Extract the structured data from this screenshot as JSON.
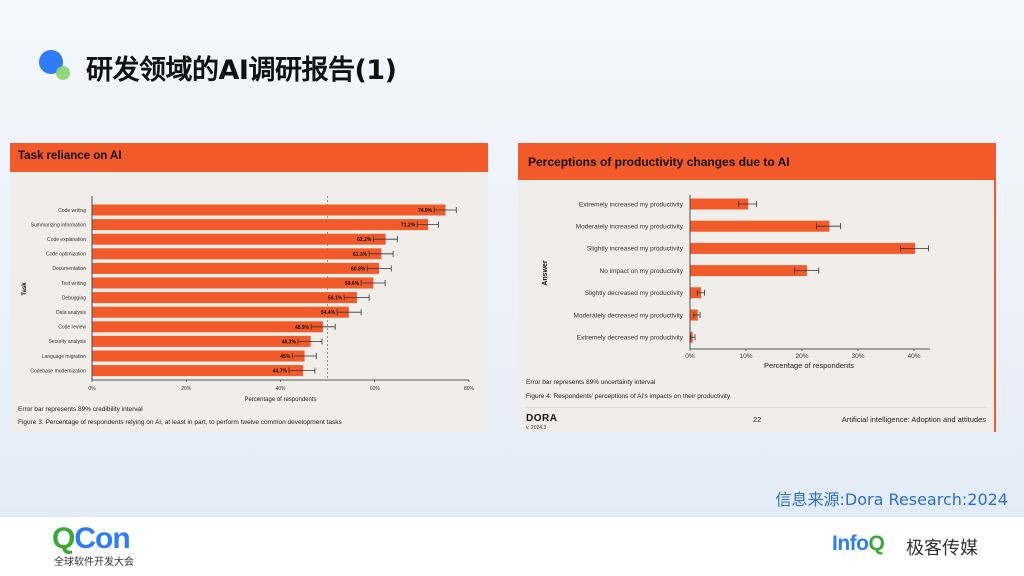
{
  "slide": {
    "title": "研发领域的AI调研报告(1)",
    "source": "信息来源:Dora Research:2024",
    "footer_left_logo": "QCon",
    "footer_left_sub": "全球软件开发大会",
    "footer_right_logo": "InfoQ",
    "footer_right_sub": "极客传媒",
    "accent": "#f25a29"
  },
  "left_panel": {
    "header": "Task reliance on AI",
    "error_note": "Error bar represents 89% credibility interval",
    "caption": "Figure 3: Percentage of respondents relying on AI, at least in part, to perform twelve common development tasks"
  },
  "right_panel": {
    "header": "Perceptions of productivity changes due to AI",
    "error_note": "Error bar represents 89% uncertainty interval",
    "caption": "Figure 4: Respondents' perceptions of AI's impacts on their productivity",
    "brand": "DORA",
    "version": "v. 2024.3",
    "page": "22",
    "section": "Artificial intelligence: Adoption and attitudes"
  },
  "chart_data": [
    {
      "type": "bar",
      "orientation": "horizontal",
      "title": "Task reliance on AI",
      "xlabel": "Percentage of respondents",
      "ylabel": "Task",
      "xlim": [
        0,
        80
      ],
      "xticks": [
        "0%",
        "20%",
        "40%",
        "60%",
        "80%"
      ],
      "reference_line": 50,
      "categories": [
        "Code writing",
        "Summarizing information",
        "Code explanation",
        "Code optimization",
        "Documentation",
        "Test writing",
        "Debugging",
        "Data analysis",
        "Code review",
        "Security analysis",
        "Language migration",
        "Codebase modernization"
      ],
      "values": [
        74.9,
        71.2,
        62.2,
        61.3,
        60.8,
        59.6,
        56.1,
        54.4,
        48.9,
        46.3,
        45.0,
        44.7
      ],
      "labels": [
        "74.9%",
        "71.2%",
        "62.2%",
        "61.3%",
        "60.8%",
        "59.6%",
        "56.1%",
        "54.4%",
        "48.9%",
        "46.3%",
        "45%",
        "44.7%"
      ],
      "error_low": [
        72.6,
        69.0,
        59.7,
        58.8,
        58.4,
        57.1,
        53.5,
        52.0,
        46.5,
        43.7,
        42.5,
        41.8
      ],
      "error_high": [
        77.3,
        73.5,
        64.8,
        63.9,
        63.5,
        62.2,
        58.8,
        57.1,
        51.6,
        48.8,
        47.6,
        47.3
      ]
    },
    {
      "type": "bar",
      "orientation": "horizontal",
      "title": "Perceptions of productivity changes due to AI",
      "xlabel": "Percentage of respondents",
      "ylabel": "Answer",
      "xlim": [
        0,
        42.5
      ],
      "xticks": [
        "0%",
        "10%",
        "20%",
        "30%",
        "40%"
      ],
      "categories": [
        "Extremely increased my productivity",
        "Moderately increased my productivity",
        "Slightly increased my productivity",
        "No impact on my productivity",
        "Slightly decreased my productivity",
        "Moderately decreased my productivity",
        "Extremely decreased my productivity"
      ],
      "values": [
        10.3,
        24.8,
        40.1,
        20.8,
        1.9,
        1.3,
        0.4
      ],
      "error_low": [
        8.7,
        22.6,
        37.6,
        18.7,
        1.3,
        0.7,
        0.1
      ],
      "error_high": [
        11.9,
        26.9,
        42.6,
        23.0,
        2.6,
        1.8,
        0.9
      ]
    }
  ]
}
